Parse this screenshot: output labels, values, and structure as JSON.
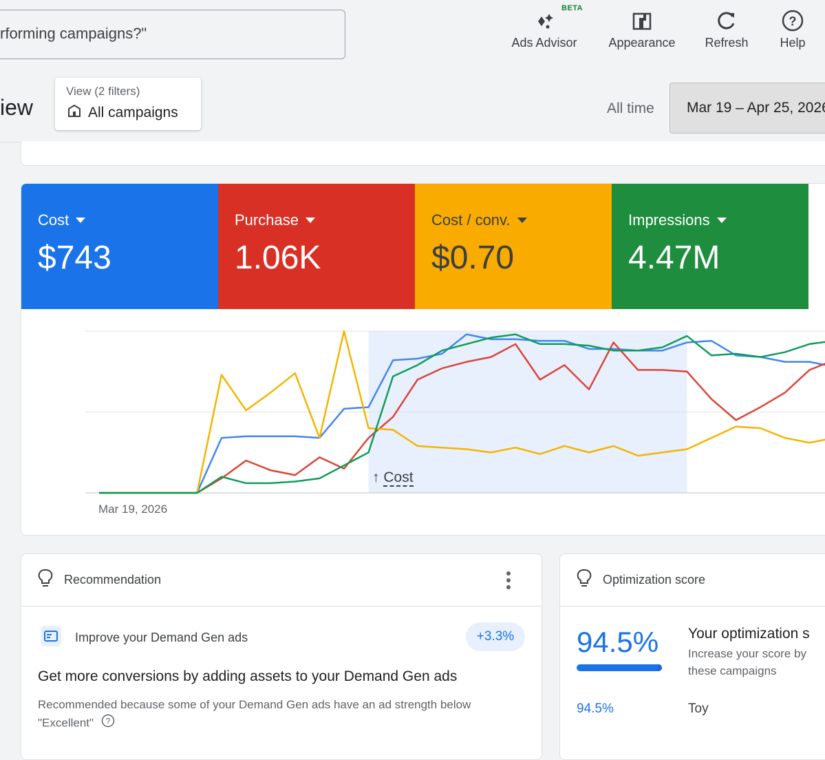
{
  "search": {
    "text": "rforming campaigns?\""
  },
  "toolbar": {
    "beta_badge": "BETA",
    "ads_advisor": "Ads Advisor",
    "appearance": "Appearance",
    "refresh": "Refresh",
    "help": "Help"
  },
  "header": {
    "title": "iew",
    "view_filters": "View (2 filters)",
    "view_name": "All campaigns",
    "range_label": "All time",
    "date_range": "Mar 19 – Apr 25, 2026"
  },
  "metrics": [
    {
      "label": "Cost",
      "value": "$743",
      "color": "#1a73e8"
    },
    {
      "label": "Purchase",
      "value": "1.06K",
      "color": "#d93025"
    },
    {
      "label": "Cost / conv.",
      "value": "$0.70",
      "color": "#f9ab00"
    },
    {
      "label": "Impressions",
      "value": "4.47M",
      "color": "#1e8e3e"
    }
  ],
  "chart_data": {
    "type": "line",
    "x_start_label": "Mar 19, 2026",
    "marker_label": "Cost",
    "highlight_range": [
      11,
      24
    ],
    "ylim": [
      0,
      100
    ],
    "grid": true,
    "series": [
      {
        "color": "#4285f4",
        "values": [
          0,
          0,
          0,
          0,
          0,
          34,
          35,
          35,
          35,
          34,
          52,
          53,
          82,
          83,
          86,
          98,
          95,
          95,
          94,
          94,
          89,
          89,
          88,
          88,
          93,
          94,
          85,
          84,
          81,
          81,
          78,
          85
        ]
      },
      {
        "color": "#db4437",
        "values": [
          0,
          0,
          0,
          0,
          0,
          9,
          20,
          14,
          11,
          22,
          15,
          34,
          47,
          70,
          77,
          81,
          84,
          92,
          70,
          79,
          64,
          93,
          76,
          76,
          75,
          58,
          45,
          53,
          62,
          76,
          82,
          88
        ]
      },
      {
        "color": "#f4b400",
        "values": [
          0,
          0,
          0,
          0,
          0,
          73,
          51,
          62,
          74,
          34,
          100,
          40,
          39,
          29,
          28,
          27,
          25,
          28,
          24,
          29,
          25,
          29,
          23,
          25,
          27,
          34,
          41,
          40,
          34,
          31,
          34,
          37
        ]
      },
      {
        "color": "#0f9d58",
        "values": [
          0,
          0,
          0,
          0,
          0,
          10,
          6,
          6,
          7,
          9,
          17,
          25,
          72,
          79,
          88,
          92,
          96,
          98,
          92,
          92,
          91,
          88,
          88,
          90,
          97,
          85,
          86,
          84,
          87,
          92,
          94,
          96
        ]
      }
    ]
  },
  "recommendation": {
    "header": "Recommendation",
    "item_title": "Improve your Demand Gen ads",
    "delta": "+3.3%",
    "headline": "Get more conversions by adding assets to your Demand Gen ads",
    "description": "Recommended because some of your Demand Gen ads have an ad strength below \"Excellent\"",
    "score_fraction": 0.945
  },
  "optimization": {
    "header": "Optimization score",
    "score": "94.5%",
    "score_fraction": 0.945,
    "title": "Your optimization s",
    "desc_line1": "Increase your score by",
    "desc_line2": "these campaigns",
    "row_score": "94.5%",
    "row_campaign": "Toy"
  }
}
